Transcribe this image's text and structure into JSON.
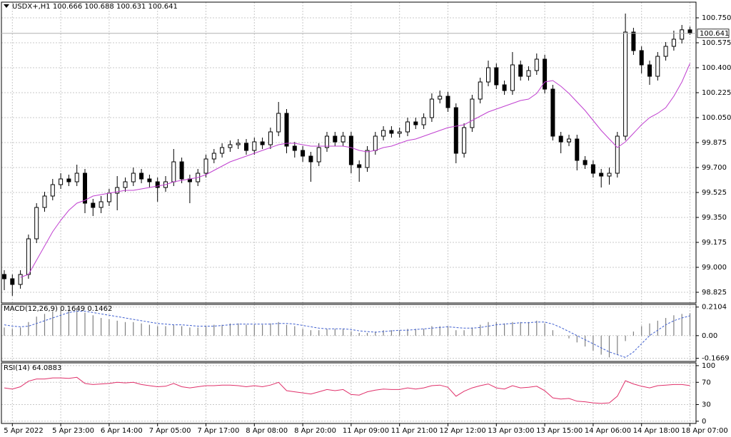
{
  "chart_data": [
    {
      "type": "candlestick",
      "title": "USDX+,H1",
      "categories": [
        null,
        "5 Apr 2022",
        null,
        null,
        null,
        null,
        null,
        "5 Apr 23:00",
        null,
        null,
        null,
        null,
        null,
        "6 Apr 14:00",
        null,
        null,
        null,
        null,
        null,
        "7 Apr 05:00",
        null,
        null,
        null,
        null,
        null,
        "7 Apr 17:00",
        null,
        null,
        null,
        null,
        null,
        "8 Apr 08:00",
        null,
        null,
        null,
        null,
        null,
        "8 Apr 20:00",
        null,
        null,
        null,
        null,
        null,
        "11 Apr 09:00",
        null,
        null,
        null,
        null,
        null,
        "11 Apr 21:00",
        null,
        null,
        null,
        null,
        null,
        "12 Apr 12:00",
        null,
        null,
        null,
        null,
        null,
        "13 Apr 03:00",
        null,
        null,
        null,
        null,
        null,
        "13 Apr 15:00",
        null,
        null,
        null,
        null,
        null,
        "14 Apr 06:00",
        null,
        null,
        null,
        null,
        null,
        "14 Apr 18:00",
        null,
        null,
        null,
        null,
        null,
        "18 Apr 07:00"
      ],
      "open": [
        98.95,
        98.92,
        98.88,
        98.95,
        99.2,
        99.42,
        99.5,
        99.58,
        99.62,
        99.6,
        99.66,
        99.45,
        99.42,
        99.46,
        99.52,
        99.56,
        99.6,
        99.66,
        99.62,
        99.6,
        99.56,
        99.6,
        99.74,
        99.62,
        99.6,
        99.66,
        99.76,
        99.8,
        99.84,
        99.86,
        99.87,
        99.82,
        99.88,
        99.86,
        99.95,
        100.08,
        99.85,
        99.82,
        99.78,
        99.74,
        99.84,
        99.92,
        99.88,
        99.92,
        99.72,
        99.7,
        99.82,
        99.92,
        99.96,
        99.94,
        99.95,
        100.02,
        100.0,
        100.05,
        100.18,
        100.2,
        100.12,
        99.8,
        99.98,
        100.18,
        100.3,
        100.4,
        100.28,
        100.24,
        100.42,
        100.34,
        100.38,
        100.46,
        100.25,
        99.92,
        99.88,
        99.9,
        99.75,
        99.72,
        99.66,
        99.64,
        99.66,
        99.92,
        100.65,
        100.52,
        100.42,
        100.34,
        100.48,
        100.55,
        100.6,
        100.666
      ],
      "high": [
        98.98,
        98.95,
        98.98,
        99.23,
        99.45,
        99.53,
        99.62,
        99.66,
        99.65,
        99.72,
        99.69,
        99.48,
        99.5,
        99.55,
        99.64,
        99.63,
        99.7,
        99.69,
        99.65,
        99.63,
        99.64,
        99.83,
        99.77,
        99.65,
        99.69,
        99.79,
        99.83,
        99.87,
        99.89,
        99.9,
        99.9,
        99.91,
        99.91,
        99.98,
        100.16,
        100.11,
        99.88,
        99.85,
        99.81,
        99.87,
        99.95,
        99.95,
        99.95,
        99.95,
        99.75,
        99.85,
        99.95,
        99.99,
        99.99,
        99.98,
        100.05,
        100.05,
        100.08,
        100.22,
        100.24,
        100.23,
        100.15,
        100.01,
        100.21,
        100.33,
        100.45,
        100.43,
        100.31,
        100.51,
        100.45,
        100.41,
        100.5,
        100.49,
        100.28,
        99.95,
        99.93,
        99.93,
        99.78,
        99.75,
        99.69,
        99.7,
        99.95,
        100.78,
        100.68,
        100.55,
        100.45,
        100.51,
        100.58,
        100.66,
        100.7,
        100.688
      ],
      "low": [
        98.84,
        98.8,
        98.85,
        98.92,
        99.17,
        99.39,
        99.47,
        99.55,
        99.57,
        99.57,
        99.38,
        99.36,
        99.38,
        99.43,
        99.4,
        99.53,
        99.57,
        99.59,
        99.56,
        99.46,
        99.53,
        99.57,
        99.59,
        99.45,
        99.57,
        99.63,
        99.73,
        99.77,
        99.81,
        99.83,
        99.79,
        99.79,
        99.83,
        99.83,
        99.92,
        99.8,
        99.77,
        99.74,
        99.6,
        99.71,
        99.81,
        99.85,
        99.85,
        99.66,
        99.6,
        99.67,
        99.79,
        99.89,
        99.91,
        99.91,
        99.92,
        99.97,
        99.97,
        100.02,
        100.15,
        100.09,
        99.73,
        99.77,
        99.95,
        100.15,
        100.27,
        100.25,
        100.21,
        100.21,
        100.31,
        100.31,
        100.35,
        100.22,
        99.89,
        99.8,
        99.85,
        99.68,
        99.69,
        99.63,
        99.56,
        99.58,
        99.63,
        99.89,
        100.49,
        100.36,
        100.28,
        100.31,
        100.45,
        100.52,
        100.57,
        100.631
      ],
      "close": [
        98.92,
        98.88,
        98.95,
        99.2,
        99.42,
        99.5,
        99.58,
        99.62,
        99.6,
        99.66,
        99.45,
        99.42,
        99.46,
        99.52,
        99.56,
        99.6,
        99.66,
        99.62,
        99.6,
        99.56,
        99.6,
        99.74,
        99.62,
        99.6,
        99.66,
        99.76,
        99.8,
        99.84,
        99.86,
        99.87,
        99.82,
        99.88,
        99.86,
        99.95,
        100.08,
        99.85,
        99.82,
        99.78,
        99.74,
        99.84,
        99.92,
        99.88,
        99.92,
        99.72,
        99.7,
        99.82,
        99.92,
        99.96,
        99.94,
        99.95,
        100.02,
        100.0,
        100.05,
        100.18,
        100.2,
        100.12,
        99.8,
        99.98,
        100.18,
        100.3,
        100.4,
        100.28,
        100.24,
        100.42,
        100.34,
        100.38,
        100.46,
        100.25,
        99.92,
        99.88,
        99.9,
        99.75,
        99.72,
        99.66,
        99.64,
        99.66,
        99.92,
        100.65,
        100.52,
        100.42,
        100.34,
        100.48,
        100.55,
        100.6,
        100.666,
        100.641
      ],
      "ma": {
        "color": "#c040d0",
        "values": [
          null,
          null,
          98.93,
          98.95,
          99.05,
          99.15,
          99.25,
          99.33,
          99.4,
          99.45,
          99.47,
          99.5,
          99.51,
          99.52,
          99.53,
          99.54,
          99.54,
          99.55,
          99.56,
          99.57,
          99.58,
          99.6,
          99.61,
          99.62,
          99.63,
          99.65,
          99.68,
          99.71,
          99.74,
          99.76,
          99.78,
          99.8,
          99.82,
          99.84,
          99.86,
          99.87,
          99.87,
          99.86,
          99.85,
          99.85,
          99.85,
          99.85,
          99.85,
          99.84,
          99.82,
          99.81,
          99.82,
          99.84,
          99.85,
          99.87,
          99.89,
          99.9,
          99.92,
          99.94,
          99.96,
          99.98,
          99.99,
          100.0,
          100.03,
          100.06,
          100.09,
          100.11,
          100.13,
          100.15,
          100.17,
          100.18,
          100.22,
          100.3,
          100.31,
          100.27,
          100.22,
          100.16,
          100.1,
          100.03,
          99.96,
          99.9,
          99.84,
          99.88,
          99.94,
          100.0,
          100.05,
          100.08,
          100.12,
          100.2,
          100.3,
          100.43
        ]
      },
      "up_color": "#ffffff",
      "down_color": "#000000",
      "ylim": [
        98.75,
        100.86
      ],
      "yticks": [
        98.825,
        {
          "value": 99,
          "label": "99.000"
        },
        99.175,
        {
          "value": 99.35,
          "label": "99.350"
        },
        99.525,
        {
          "value": 99.7,
          "label": "99.700"
        },
        {
          "value": 99.875,
          "label": "99.875"
        },
        {
          "value": 100.05,
          "label": "100.050"
        },
        100.225,
        {
          "value": 100.4,
          "label": "100.400"
        },
        100.575,
        {
          "value": 100.75,
          "label": "100.750"
        }
      ],
      "grid": true
    },
    {
      "type": "macd",
      "title": "MACD(12,26,9)",
      "histogram": [
        0.06,
        0.05,
        0.06,
        0.1,
        0.14,
        0.16,
        0.18,
        0.19,
        0.19,
        0.19,
        0.17,
        0.15,
        0.13,
        0.12,
        0.11,
        0.1,
        0.1,
        0.09,
        0.08,
        0.07,
        0.07,
        0.08,
        0.07,
        0.06,
        0.06,
        0.07,
        0.08,
        0.08,
        0.09,
        0.09,
        0.08,
        0.08,
        0.08,
        0.09,
        0.1,
        0.08,
        0.07,
        0.05,
        0.04,
        0.04,
        0.05,
        0.05,
        0.05,
        0.03,
        0.02,
        0.02,
        0.03,
        0.04,
        0.04,
        0.04,
        0.05,
        0.05,
        0.05,
        0.07,
        0.07,
        0.07,
        0.04,
        0.04,
        0.06,
        0.08,
        0.1,
        0.1,
        0.09,
        0.1,
        0.1,
        0.1,
        0.11,
        0.09,
        0.04,
        0.0,
        -0.02,
        -0.05,
        -0.08,
        -0.11,
        -0.14,
        -0.16,
        -0.14,
        -0.04,
        0.03,
        0.07,
        0.09,
        0.11,
        0.13,
        0.15,
        0.16,
        0.1649
      ],
      "signal": [
        0.08,
        0.07,
        0.065,
        0.07,
        0.09,
        0.11,
        0.13,
        0.15,
        0.17,
        0.18,
        0.18,
        0.17,
        0.16,
        0.15,
        0.14,
        0.13,
        0.12,
        0.11,
        0.1,
        0.09,
        0.085,
        0.08,
        0.08,
        0.075,
        0.07,
        0.07,
        0.07,
        0.075,
        0.08,
        0.085,
        0.085,
        0.085,
        0.085,
        0.085,
        0.09,
        0.09,
        0.085,
        0.075,
        0.065,
        0.055,
        0.05,
        0.05,
        0.05,
        0.045,
        0.035,
        0.03,
        0.025,
        0.03,
        0.035,
        0.04,
        0.04,
        0.045,
        0.05,
        0.055,
        0.06,
        0.065,
        0.06,
        0.055,
        0.055,
        0.06,
        0.07,
        0.08,
        0.085,
        0.09,
        0.095,
        0.095,
        0.1,
        0.1,
        0.085,
        0.06,
        0.03,
        0.0,
        -0.03,
        -0.06,
        -0.09,
        -0.12,
        -0.14,
        -0.16,
        -0.12,
        -0.06,
        0.0,
        0.04,
        0.08,
        0.11,
        0.13,
        0.1462
      ],
      "histogram_color": "#808080",
      "signal_color": "#4060d0",
      "ylim": [
        -0.19,
        0.23
      ],
      "yticks": [
        0.2104,
        {
          "value": 0,
          "label": "0.00"
        },
        -0.1669
      ],
      "grid": true
    },
    {
      "type": "line",
      "title": "RSI(14)",
      "values": [
        60,
        58,
        62,
        72,
        76,
        76,
        78,
        78,
        77,
        79,
        68,
        66,
        67,
        68,
        70,
        69,
        70,
        66,
        64,
        62,
        63,
        68,
        62,
        60,
        62,
        64,
        64,
        65,
        65,
        64,
        62,
        64,
        62,
        65,
        70,
        55,
        53,
        51,
        49,
        53,
        57,
        55,
        57,
        48,
        47,
        53,
        56,
        58,
        57,
        57,
        60,
        58,
        60,
        64,
        65,
        61,
        45,
        54,
        60,
        64,
        67,
        60,
        58,
        64,
        60,
        61,
        63,
        55,
        42,
        40,
        41,
        36,
        35,
        33,
        32,
        33,
        45,
        73,
        67,
        63,
        60,
        64,
        65,
        66,
        66,
        64.0883
      ],
      "color": "#e0306a",
      "ylim": [
        -4,
        105
      ],
      "yticks": [
        100,
        70,
        30,
        0
      ],
      "grid": true
    }
  ]
}
